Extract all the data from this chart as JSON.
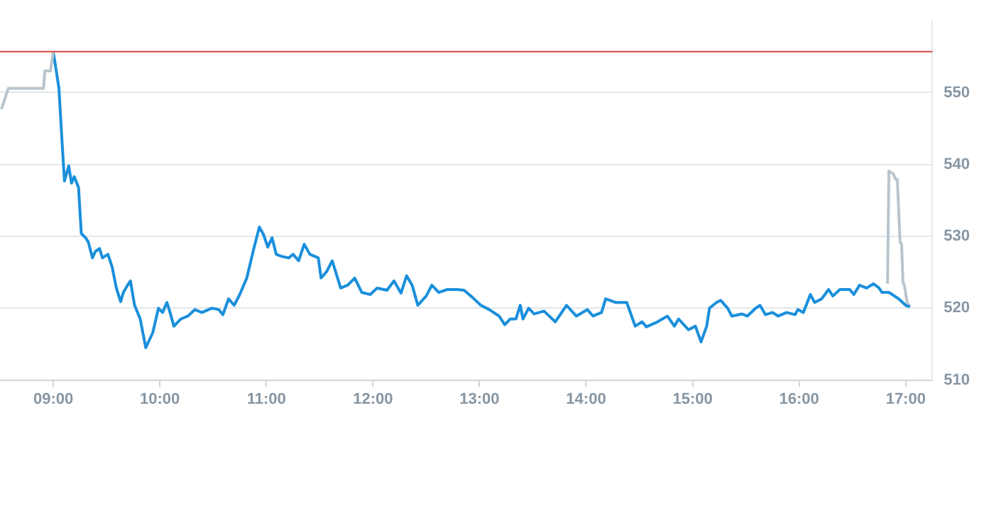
{
  "chart_data": {
    "type": "line",
    "marker": "none",
    "line_style": "solid",
    "grid": "y",
    "legend": false,
    "xlim": [
      8.5,
      17.25
    ],
    "xticks": [
      {
        "value": 9,
        "label": "09:00"
      },
      {
        "value": 10,
        "label": "10:00"
      },
      {
        "value": 11,
        "label": "11:00"
      },
      {
        "value": 12,
        "label": "12:00"
      },
      {
        "value": 13,
        "label": "13:00"
      },
      {
        "value": 14,
        "label": "14:00"
      },
      {
        "value": 15,
        "label": "15:00"
      },
      {
        "value": 16,
        "label": "16:00"
      },
      {
        "value": 17,
        "label": "17:00"
      }
    ],
    "ylim": [
      510,
      560
    ],
    "yticks": [
      510,
      520,
      530,
      540,
      550
    ],
    "ref_lines": [
      {
        "axis": "y",
        "value": 555.7,
        "color": "#d9453f"
      }
    ],
    "series": [
      {
        "color": "#b9c5cc",
        "x": [
          8.513,
          8.579,
          8.908,
          8.921,
          8.974,
          9.0
        ],
        "values": [
          547.7,
          550.6,
          550.6,
          553.0,
          553.0,
          555.7
        ]
      },
      {
        "color": "#1a8fdc",
        "x": [
          9.0,
          9.053,
          9.079,
          9.105,
          9.145,
          9.171,
          9.197,
          9.237,
          9.263,
          9.303,
          9.329,
          9.368,
          9.395,
          9.434,
          9.461,
          9.513,
          9.553,
          9.592,
          9.632,
          9.658,
          9.697,
          9.724,
          9.763,
          9.816,
          9.868,
          9.934,
          9.987,
          10.026,
          10.066,
          10.092,
          10.132,
          10.197,
          10.263,
          10.329,
          10.395,
          10.487,
          10.553,
          10.592,
          10.645,
          10.697,
          10.75,
          10.816,
          10.882,
          10.934,
          10.974,
          11.013,
          11.053,
          11.092,
          11.145,
          11.211,
          11.25,
          11.303,
          11.355,
          11.408,
          11.487,
          11.513,
          11.566,
          11.618,
          11.697,
          11.763,
          11.829,
          11.895,
          11.974,
          12.039,
          12.132,
          12.197,
          12.263,
          12.316,
          12.368,
          12.421,
          12.5,
          12.553,
          12.618,
          12.697,
          12.789,
          12.855,
          12.934,
          13.013,
          13.092,
          13.184,
          13.237,
          13.289,
          13.342,
          13.382,
          13.408,
          13.461,
          13.513,
          13.605,
          13.711,
          13.816,
          13.908,
          14.013,
          14.066,
          14.145,
          14.184,
          14.276,
          14.382,
          14.461,
          14.526,
          14.566,
          14.671,
          14.763,
          14.829,
          14.868,
          14.961,
          15.026,
          15.079,
          15.132,
          15.158,
          15.224,
          15.263,
          15.329,
          15.368,
          15.461,
          15.513,
          15.592,
          15.632,
          15.684,
          15.75,
          15.803,
          15.882,
          15.961,
          15.987,
          16.039,
          16.105,
          16.145,
          16.211,
          16.276,
          16.316,
          16.382,
          16.474,
          16.513,
          16.566,
          16.632,
          16.697,
          16.75,
          16.776,
          16.842,
          16.934,
          17.0,
          17.039
        ],
        "values": [
          555.7,
          550.6,
          544.0,
          537.7,
          539.8,
          537.4,
          538.3,
          536.8,
          530.4,
          529.8,
          529.2,
          527.0,
          527.9,
          528.3,
          527.0,
          527.5,
          525.7,
          522.8,
          520.9,
          522.2,
          523.2,
          523.8,
          520.4,
          518.5,
          514.5,
          516.6,
          520.0,
          519.4,
          520.8,
          519.6,
          517.5,
          518.5,
          518.9,
          519.8,
          519.4,
          520.0,
          519.8,
          519.1,
          521.3,
          520.4,
          521.9,
          524.2,
          528.3,
          531.3,
          530.2,
          528.5,
          529.8,
          527.5,
          527.2,
          527.0,
          527.5,
          526.6,
          528.9,
          527.5,
          527.0,
          524.2,
          525.1,
          526.6,
          522.8,
          523.2,
          524.2,
          522.2,
          521.9,
          522.8,
          522.5,
          523.8,
          522.1,
          524.5,
          523.2,
          520.4,
          521.7,
          523.2,
          522.2,
          522.6,
          522.6,
          522.5,
          521.5,
          520.4,
          519.8,
          518.9,
          517.7,
          518.5,
          518.5,
          520.4,
          518.5,
          520.0,
          519.2,
          519.6,
          518.1,
          520.4,
          518.9,
          519.8,
          518.9,
          519.4,
          521.3,
          520.8,
          520.8,
          517.5,
          518.1,
          517.4,
          518.1,
          518.9,
          517.5,
          518.5,
          517.0,
          517.5,
          515.3,
          517.5,
          520.0,
          520.8,
          521.1,
          520.0,
          518.9,
          519.2,
          518.9,
          520.0,
          520.4,
          519.1,
          519.4,
          518.9,
          519.4,
          519.1,
          519.8,
          519.4,
          521.9,
          520.8,
          521.3,
          522.6,
          521.7,
          522.6,
          522.6,
          521.9,
          523.2,
          522.8,
          523.4,
          522.8,
          522.2,
          522.2,
          521.3,
          520.4,
          520.2
        ]
      },
      {
        "color": "#b9c5cc",
        "x": [
          16.829,
          16.842,
          16.882,
          16.908,
          16.921,
          16.947,
          16.961,
          16.974,
          16.987,
          17.013,
          17.039
        ],
        "values": [
          523.4,
          539.1,
          538.7,
          537.9,
          537.9,
          529.2,
          528.9,
          523.6,
          523.2,
          520.8,
          520.2
        ]
      }
    ]
  }
}
